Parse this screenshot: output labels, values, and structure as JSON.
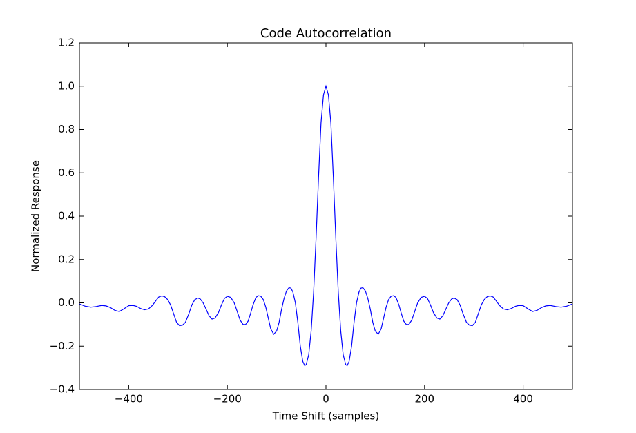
{
  "chart_data": {
    "type": "line",
    "title": "Code Autocorrelation",
    "x_label": "Time Shift (samples)",
    "y_label": "Normalized Response",
    "color": "#0000ff",
    "x": [
      -500,
      -489,
      -477,
      -466,
      -455,
      -446,
      -437,
      -428,
      -419,
      -410,
      -400,
      -391,
      -384,
      -376,
      -368,
      -360,
      -352,
      -345,
      -339,
      -333,
      -327,
      -321,
      -315,
      -309,
      -303,
      -297,
      -291,
      -285,
      -278,
      -272,
      -266,
      -260,
      -255,
      -249,
      -243,
      -237,
      -231,
      -225,
      -218,
      -212,
      -206,
      -200,
      -193,
      -186,
      -180,
      -174,
      -168,
      -163,
      -158,
      -153,
      -148,
      -142,
      -137,
      -132,
      -127,
      -122,
      -117,
      -112,
      -106,
      -100,
      -95,
      -90,
      -85,
      -80,
      -75,
      -71,
      -67,
      -62,
      -57,
      -52,
      -47,
      -43,
      -40,
      -35,
      -30,
      -25,
      -20,
      -15,
      -10,
      -5,
      0,
      5,
      10,
      15,
      20,
      25,
      30,
      35,
      40,
      43,
      47,
      52,
      57,
      62,
      67,
      71,
      75,
      80,
      85,
      90,
      95,
      100,
      106,
      112,
      117,
      122,
      127,
      132,
      137,
      142,
      148,
      153,
      158,
      163,
      168,
      174,
      180,
      186,
      193,
      200,
      206,
      212,
      218,
      225,
      231,
      237,
      243,
      249,
      255,
      260,
      266,
      272,
      278,
      285,
      291,
      297,
      303,
      309,
      315,
      321,
      327,
      333,
      339,
      345,
      352,
      360,
      368,
      376,
      384,
      391,
      400,
      410,
      419,
      428,
      437,
      446,
      455,
      466,
      477,
      489,
      500
    ],
    "values": [
      -0.005,
      -0.015,
      -0.02,
      -0.017,
      -0.012,
      -0.014,
      -0.022,
      -0.035,
      -0.04,
      -0.028,
      -0.013,
      -0.012,
      -0.016,
      -0.026,
      -0.032,
      -0.028,
      -0.012,
      0.01,
      0.027,
      0.032,
      0.028,
      0.015,
      -0.01,
      -0.05,
      -0.09,
      -0.105,
      -0.103,
      -0.09,
      -0.05,
      -0.01,
      0.015,
      0.022,
      0.018,
      0.0,
      -0.03,
      -0.06,
      -0.075,
      -0.07,
      -0.045,
      -0.01,
      0.02,
      0.03,
      0.025,
      0.0,
      -0.04,
      -0.08,
      -0.1,
      -0.1,
      -0.085,
      -0.05,
      -0.01,
      0.025,
      0.033,
      0.03,
      0.015,
      -0.02,
      -0.07,
      -0.12,
      -0.145,
      -0.13,
      -0.09,
      -0.03,
      0.02,
      0.055,
      0.07,
      0.068,
      0.05,
      0.0,
      -0.09,
      -0.2,
      -0.27,
      -0.29,
      -0.285,
      -0.24,
      -0.13,
      0.05,
      0.3,
      0.58,
      0.83,
      0.96,
      1.0,
      0.96,
      0.83,
      0.58,
      0.3,
      0.05,
      -0.13,
      -0.24,
      -0.285,
      -0.29,
      -0.27,
      -0.2,
      -0.09,
      0.0,
      0.05,
      0.068,
      0.07,
      0.055,
      0.02,
      -0.03,
      -0.09,
      -0.13,
      -0.145,
      -0.12,
      -0.07,
      -0.02,
      0.015,
      0.03,
      0.033,
      0.025,
      -0.01,
      -0.05,
      -0.085,
      -0.1,
      -0.1,
      -0.08,
      -0.04,
      0.0,
      0.025,
      0.03,
      0.02,
      -0.01,
      -0.045,
      -0.07,
      -0.075,
      -0.06,
      -0.03,
      0.0,
      0.018,
      0.022,
      0.015,
      -0.01,
      -0.05,
      -0.09,
      -0.103,
      -0.105,
      -0.09,
      -0.05,
      -0.01,
      0.015,
      0.028,
      0.032,
      0.027,
      0.01,
      -0.012,
      -0.028,
      -0.032,
      -0.026,
      -0.016,
      -0.012,
      -0.013,
      -0.028,
      -0.04,
      -0.035,
      -0.022,
      -0.014,
      -0.012,
      -0.017,
      -0.02,
      -0.015,
      -0.005
    ],
    "xlim": [
      -500,
      500
    ],
    "xticks": [
      {
        "value": -400,
        "label": "−400"
      },
      {
        "value": -200,
        "label": "−200"
      },
      0,
      200,
      400
    ],
    "ylim": [
      -0.4,
      1.2
    ],
    "yticks": [
      {
        "value": -0.4,
        "label": "−0.4"
      },
      {
        "value": -0.2,
        "label": "−0.2"
      },
      {
        "value": 0.0,
        "label": "0.0"
      },
      0.2,
      0.4,
      0.6,
      0.8,
      {
        "value": 1.0,
        "label": "1.0"
      },
      1.2
    ]
  }
}
